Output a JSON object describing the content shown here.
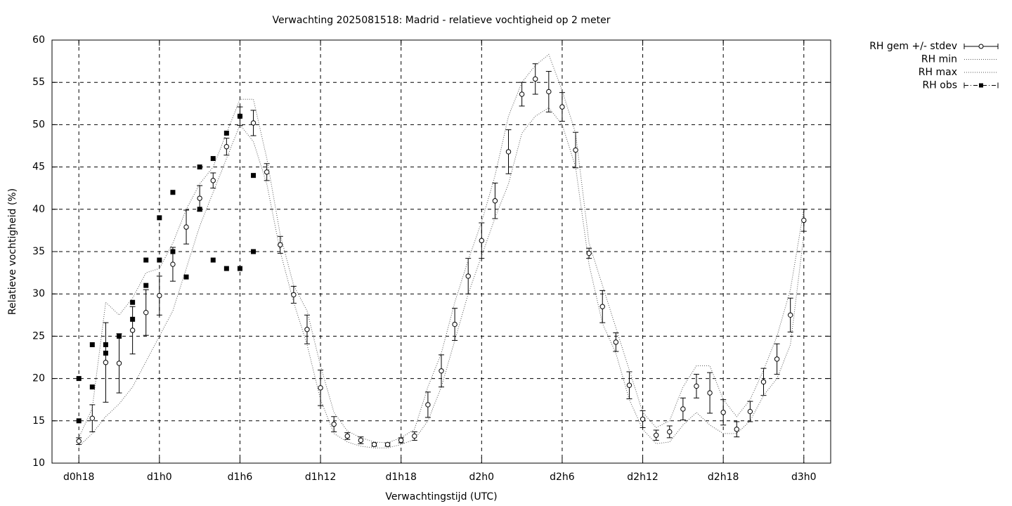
{
  "chart_data": {
    "type": "line",
    "title": "Verwachting 2025081518: Madrid - relatieve vochtigheid op 2 meter",
    "x_label": "Verwachtingstijd (UTC)",
    "y_label": "Relatieve vochtigheid (%)",
    "x": [
      0,
      1,
      2,
      3,
      4,
      5,
      6,
      7,
      8,
      9,
      10,
      11,
      12,
      13,
      14,
      15,
      16,
      17,
      18,
      19,
      20,
      21,
      22,
      23,
      24,
      25,
      26,
      27,
      28,
      29,
      30,
      31,
      32,
      33,
      34,
      35,
      36,
      37,
      38,
      39,
      40,
      41,
      42,
      43,
      44,
      45,
      46,
      47,
      48,
      49,
      50,
      51,
      52,
      53,
      54
    ],
    "xlim": [
      -2,
      56
    ],
    "xticks": [
      {
        "value": 0,
        "label": "d0h18"
      },
      {
        "value": 6,
        "label": "d1h0"
      },
      {
        "value": 12,
        "label": "d1h6"
      },
      {
        "value": 18,
        "label": "d1h12"
      },
      {
        "value": 24,
        "label": "d1h18"
      },
      {
        "value": 30,
        "label": "d2h0"
      },
      {
        "value": 36,
        "label": "d2h6"
      },
      {
        "value": 42,
        "label": "d2h12"
      },
      {
        "value": 48,
        "label": "d2h18"
      },
      {
        "value": 54,
        "label": "d3h0"
      }
    ],
    "ylim": [
      10,
      60
    ],
    "yticks": [
      10,
      15,
      20,
      25,
      30,
      35,
      40,
      45,
      50,
      55,
      60
    ],
    "grid": true,
    "legend": "outside-top-right",
    "series": [
      {
        "name": "RH gem +/- stdev",
        "color": "#000000",
        "style": "errorbars",
        "values": [
          12.6,
          15.3,
          21.9,
          21.8,
          25.7,
          27.8,
          29.8,
          33.5,
          37.9,
          41.3,
          43.4,
          47.4,
          51.0,
          50.2,
          44.4,
          35.8,
          29.9,
          25.8,
          18.9,
          14.6,
          13.2,
          12.7,
          12.2,
          12.2,
          12.7,
          13.2,
          16.9,
          20.9,
          26.4,
          32.1,
          36.3,
          41.0,
          46.8,
          53.6,
          55.4,
          53.9,
          52.1,
          47.0,
          34.8,
          28.5,
          24.3,
          19.2,
          15.2,
          13.3,
          13.7,
          16.4,
          19.1,
          18.3,
          16.0,
          14.0,
          16.1,
          19.6,
          22.3,
          27.5,
          38.7
        ],
        "errors": [
          0.4,
          1.6,
          4.7,
          3.5,
          2.8,
          2.7,
          2.3,
          2.0,
          2.0,
          1.5,
          0.9,
          1.0,
          1.1,
          1.5,
          1.0,
          1.0,
          1.0,
          1.7,
          2.1,
          0.9,
          0.4,
          0.4,
          0.2,
          0.2,
          0.3,
          0.5,
          1.5,
          1.9,
          1.9,
          2.1,
          2.1,
          2.1,
          2.6,
          1.4,
          1.8,
          2.4,
          1.7,
          2.1,
          0.6,
          1.9,
          1.1,
          1.6,
          1.0,
          0.6,
          0.7,
          1.3,
          1.4,
          2.4,
          1.5,
          0.9,
          1.2,
          1.6,
          1.8,
          2.0,
          1.3
        ]
      },
      {
        "name": "RH min",
        "color": "#555555",
        "style": "dotted",
        "values": [
          12,
          13.5,
          15.5,
          17,
          19,
          22,
          25,
          28,
          33,
          38,
          42,
          46,
          50,
          48,
          43,
          35,
          29,
          24,
          17.5,
          13.5,
          12.5,
          12,
          11.8,
          11.8,
          12.2,
          12.8,
          15,
          19,
          24.5,
          30,
          34.5,
          39,
          43,
          49,
          51,
          52,
          50,
          45,
          33.5,
          26.5,
          23,
          17.5,
          14,
          12.3,
          12.5,
          14.5,
          16,
          14.5,
          13.5,
          13.5,
          15,
          18,
          20,
          24,
          37
        ]
      },
      {
        "name": "RH max",
        "color": "#555555",
        "style": "dotted",
        "values": [
          13,
          16.5,
          29,
          27.5,
          29.5,
          32.5,
          33,
          36,
          40,
          43,
          45,
          49,
          53,
          53,
          46,
          37,
          31,
          28,
          21.5,
          16,
          13.8,
          13,
          12.5,
          12.4,
          13,
          14,
          19,
          23,
          29,
          34,
          38.5,
          44,
          51,
          55,
          57,
          58.3,
          54,
          49,
          36,
          31,
          26,
          21,
          16,
          14.2,
          15,
          19,
          21.5,
          21.5,
          17.5,
          15.5,
          17.5,
          21,
          25,
          30.5,
          40
        ]
      },
      {
        "name": "RH obs",
        "color": "#000000",
        "style": "points",
        "x": [
          0,
          0,
          1,
          1,
          2,
          2,
          3,
          4,
          4,
          5,
          5,
          6,
          6,
          7,
          7,
          8,
          9,
          9,
          10,
          10,
          11,
          11,
          12,
          12,
          13,
          13
        ],
        "values": [
          20,
          15,
          24,
          19,
          24,
          23,
          25,
          29,
          27,
          34,
          31,
          39,
          34,
          42,
          35,
          32,
          45,
          40,
          46,
          34,
          49,
          33,
          51,
          33,
          44,
          35
        ]
      }
    ]
  }
}
